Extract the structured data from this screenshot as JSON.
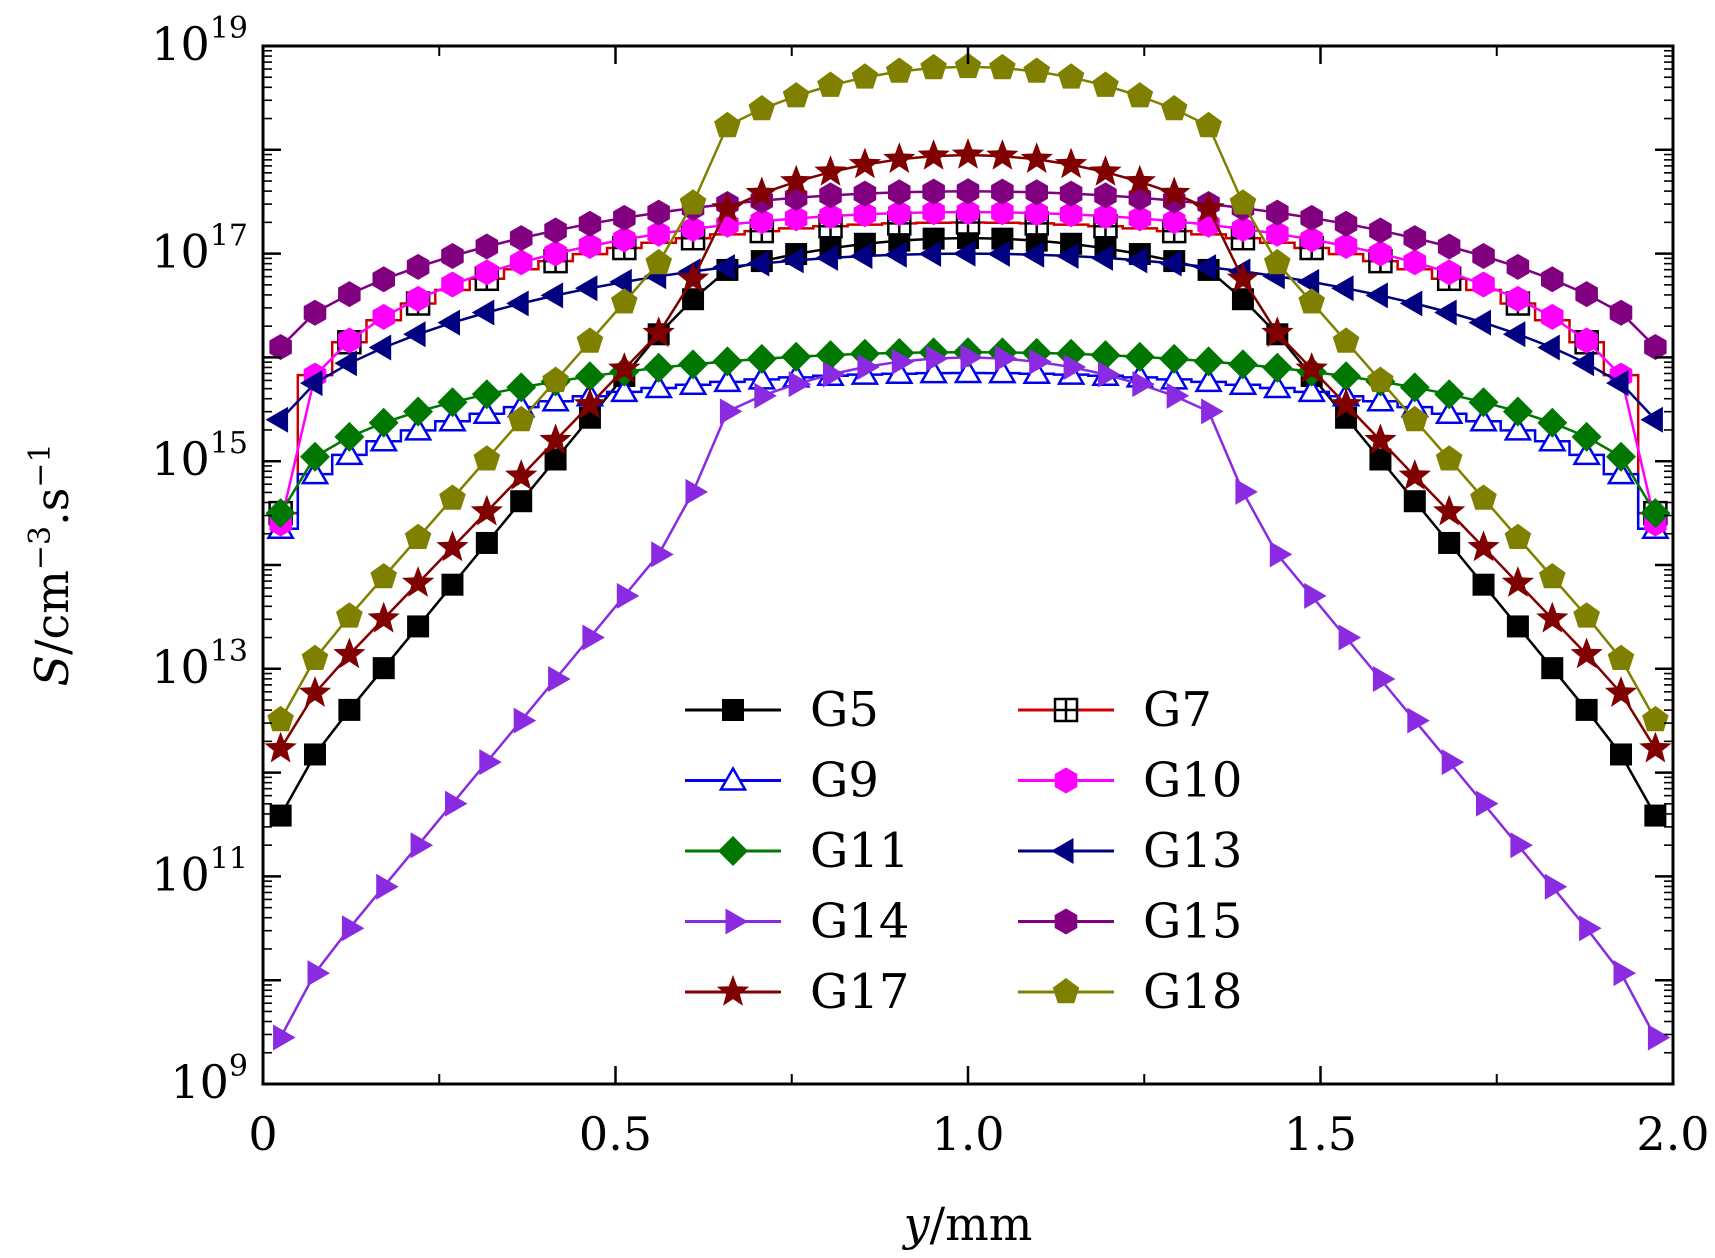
{
  "chart_data": {
    "type": "line",
    "xlabel_var": "y",
    "xlabel_unit": "/mm",
    "ylabel_var": "S",
    "ylabel_unit": "/cm",
    "ylabel_exp1": "−3",
    "ylabel_mid": ".s",
    "ylabel_exp2": "−1",
    "y_scale": "log",
    "xlim": [
      0,
      2.0
    ],
    "ylim_exp": [
      9,
      19
    ],
    "x_ticks": [
      {
        "value": 0,
        "label": "0"
      },
      {
        "value": 0.5,
        "label": "0.5"
      },
      {
        "value": 1.0,
        "label": "1.0"
      },
      {
        "value": 1.5,
        "label": "1.5"
      },
      {
        "value": 2.0,
        "label": "2.0"
      }
    ],
    "y_ticks": [
      {
        "exp": 9,
        "base": "10",
        "sup": "9"
      },
      {
        "exp": 11,
        "base": "10",
        "sup": "11"
      },
      {
        "exp": 13,
        "base": "10",
        "sup": "13"
      },
      {
        "exp": 15,
        "base": "10",
        "sup": "15"
      },
      {
        "exp": 17,
        "base": "10",
        "sup": "17"
      },
      {
        "exp": 19,
        "base": "10",
        "sup": "19"
      }
    ],
    "x_points": "41 points evenly spaced from 0.025 to 1.975 mm (step 0.04875)",
    "legend_position": "lower-center",
    "series": [
      {
        "name": "G5",
        "color": "#000000",
        "marker": "square",
        "profile": "plateau",
        "peak_log": 17.15,
        "edge_log": 11.8,
        "width_mm": 0.7,
        "inner_slope": 0.3
      },
      {
        "name": "G7",
        "color": "#cc0000",
        "marker": "square-cross",
        "profile": "ellipse",
        "peak_log": 17.3,
        "edge_log": 14.5,
        "shape": 0.32
      },
      {
        "name": "G9",
        "color": "#0000ee",
        "marker": "triangle-up",
        "profile": "ellipse",
        "peak_log": 15.85,
        "edge_log": 14.35,
        "shape": 0.45
      },
      {
        "name": "G10",
        "color": "#ff00ff",
        "marker": "hexagon",
        "profile": "ellipse",
        "peak_log": 17.4,
        "edge_log": 14.4,
        "shape": 0.32
      },
      {
        "name": "G11",
        "color": "#007700",
        "marker": "diamond",
        "profile": "ellipse",
        "peak_log": 16.05,
        "edge_log": 14.5,
        "shape": 0.45
      },
      {
        "name": "G13",
        "color": "#000080",
        "marker": "triangle-left",
        "profile": "ellipse",
        "peak_log": 17.0,
        "edge_log": 15.4,
        "shape": 0.65
      },
      {
        "name": "G14",
        "color": "#8a2be2",
        "marker": "triangle-right",
        "profile": "plateau",
        "peak_log": 16.0,
        "edge_log": 9.7,
        "width_mm": 0.8,
        "inner_slope": 0.5
      },
      {
        "name": "G15",
        "color": "#800080",
        "marker": "hexagon",
        "profile": "ellipse",
        "peak_log": 17.6,
        "edge_log": 16.1,
        "shape": 0.65
      },
      {
        "name": "G17",
        "color": "#800000",
        "marker": "star",
        "profile": "plateau",
        "peak_log": 17.95,
        "edge_log": 12.45,
        "width_mm": 0.82,
        "inner_slope": 0.5
      },
      {
        "name": "G18",
        "color": "#808000",
        "marker": "pentagon",
        "profile": "plateau",
        "peak_log": 18.8,
        "edge_log": 12.75,
        "width_mm": 0.82,
        "inner_slope": 0.55
      }
    ],
    "legend_left": [
      "G5",
      "G9",
      "G11",
      "G14",
      "G17"
    ],
    "legend_right": [
      "G7",
      "G10",
      "G13",
      "G15",
      "G18"
    ]
  }
}
